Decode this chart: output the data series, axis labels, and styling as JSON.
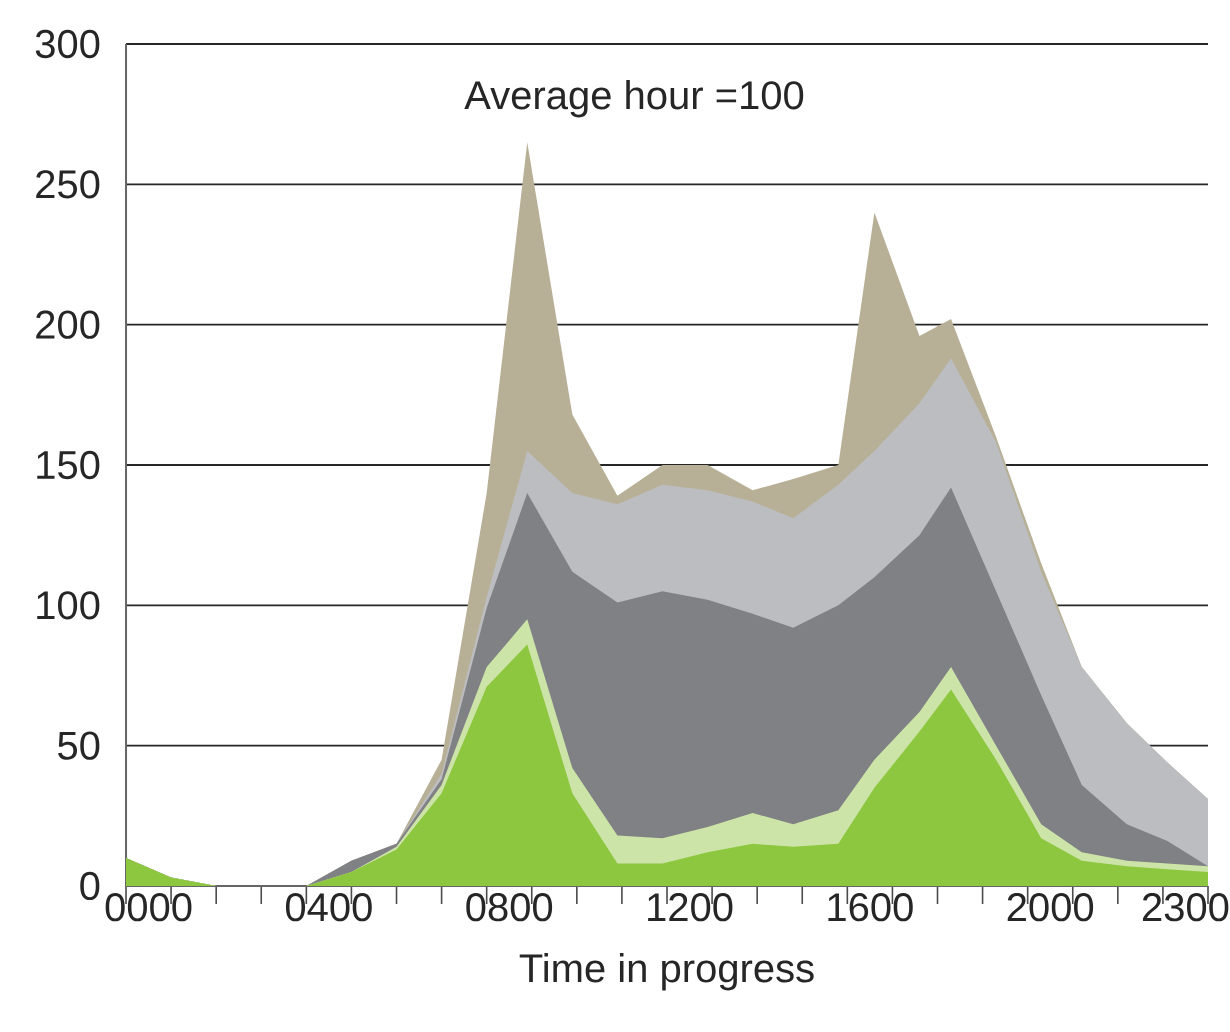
{
  "chart_data": {
    "type": "area",
    "xlabel": "Time in progress",
    "annotations": [
      "Average hour =100"
    ],
    "x": [
      -50,
      50,
      150,
      250,
      350,
      450,
      550,
      650,
      750,
      840,
      940,
      1040,
      1140,
      1240,
      1340,
      1430,
      1530,
      1610,
      1710,
      1780,
      1880,
      1980,
      2070,
      2170,
      2260,
      2350
    ],
    "series": [
      {
        "color": "#b8b096",
        "values": [
          10,
          3,
          0,
          0,
          0,
          9,
          15,
          45,
          140,
          265,
          168,
          139,
          150,
          150,
          141,
          145,
          150,
          240,
          196,
          202,
          160,
          115,
          78,
          58,
          44,
          31
        ]
      },
      {
        "color": "#bbbdc0",
        "values": [
          10,
          3,
          0,
          0,
          0,
          9,
          15,
          40,
          103,
          155,
          140,
          136,
          143,
          141,
          137,
          131,
          143,
          155,
          172,
          188,
          158,
          112,
          78,
          58,
          44,
          31
        ]
      },
      {
        "color": "#808184",
        "values": [
          10,
          3,
          0,
          0,
          0,
          9,
          15,
          38,
          99,
          140,
          112,
          101,
          105,
          102,
          97,
          92,
          100,
          110,
          125,
          142,
          105,
          68,
          36,
          22,
          16,
          7
        ]
      },
      {
        "color": "#cde4a9",
        "values": [
          10,
          3,
          0,
          0,
          0,
          5,
          14,
          36,
          78,
          95,
          42,
          18,
          17,
          21,
          26,
          22,
          27,
          45,
          62,
          78,
          50,
          22,
          12,
          9,
          8,
          7
        ]
      },
      {
        "color": "#8dc63f",
        "values": [
          10,
          3,
          0,
          0,
          0,
          5,
          13,
          33,
          71,
          86,
          33,
          8,
          8,
          12,
          15,
          14,
          15,
          35,
          55,
          70,
          45,
          17,
          9,
          7,
          6,
          5
        ]
      }
    ],
    "xlim": [
      -50,
      2350
    ],
    "xticks": [
      {
        "value": -50,
        "label": null
      },
      {
        "value": 50,
        "label": null
      },
      {
        "value": 150,
        "label": null
      },
      {
        "value": 250,
        "label": null
      },
      {
        "value": 350,
        "label": null
      },
      {
        "value": 450,
        "label": null
      },
      {
        "value": 550,
        "label": null
      },
      {
        "value": 650,
        "label": null
      },
      {
        "value": 750,
        "label": null
      },
      {
        "value": 850,
        "label": null
      },
      {
        "value": 950,
        "label": null
      },
      {
        "value": 1050,
        "label": null
      },
      {
        "value": 1150,
        "label": null
      },
      {
        "value": 1250,
        "label": null
      },
      {
        "value": 1350,
        "label": null
      },
      {
        "value": 1450,
        "label": null
      },
      {
        "value": 1550,
        "label": null
      },
      {
        "value": 1650,
        "label": null
      },
      {
        "value": 1750,
        "label": null
      },
      {
        "value": 1850,
        "label": null
      },
      {
        "value": 1950,
        "label": null
      },
      {
        "value": 2050,
        "label": null
      },
      {
        "value": 2150,
        "label": null
      },
      {
        "value": 2250,
        "label": null
      },
      {
        "value": 2350,
        "label": null
      },
      {
        "value": 0,
        "label": "0000"
      },
      {
        "value": 400,
        "label": "0400"
      },
      {
        "value": 800,
        "label": "0800"
      },
      {
        "value": 1200,
        "label": "1200"
      },
      {
        "value": 1600,
        "label": "1600"
      },
      {
        "value": 2000,
        "label": "2000"
      },
      {
        "value": 2300,
        "label": "2300"
      }
    ],
    "ylim": [
      0,
      300
    ],
    "yticks": [
      0,
      50,
      100,
      150,
      200,
      250,
      300
    ],
    "grid": "y"
  }
}
